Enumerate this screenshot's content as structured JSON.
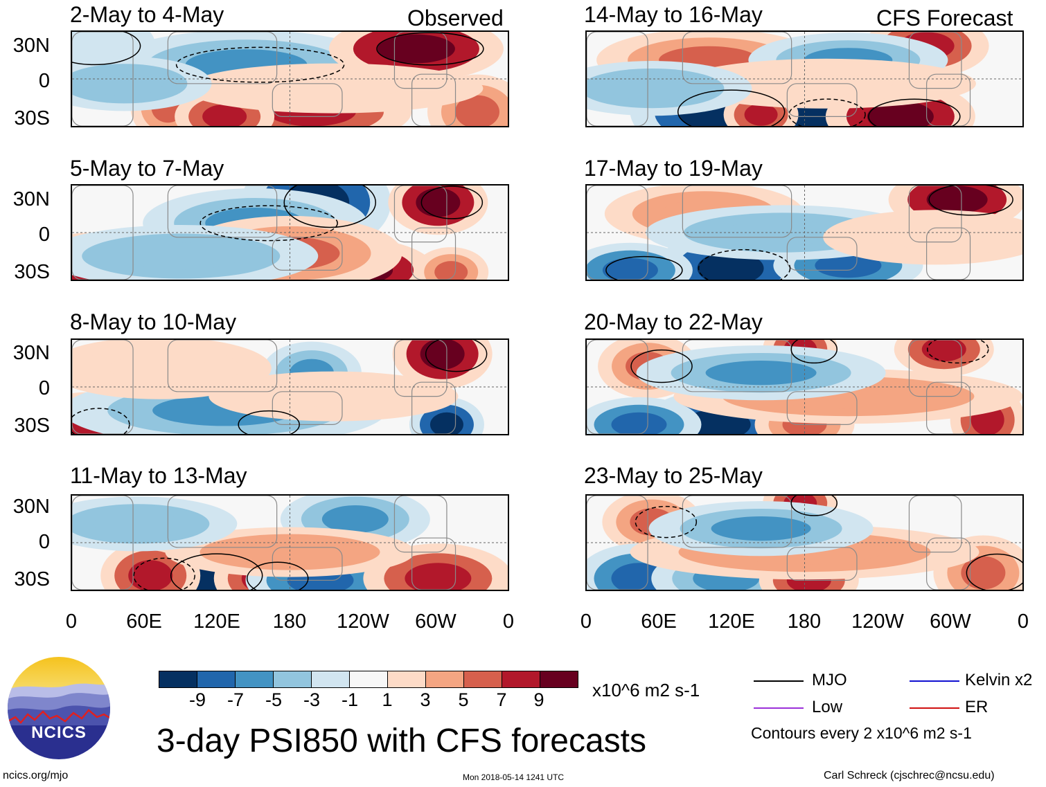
{
  "left_header": "Observed",
  "right_header": "CFS Forecast",
  "observed_panels": [
    {
      "title": "2-May to 4-May"
    },
    {
      "title": "5-May to 7-May"
    },
    {
      "title": "8-May to 10-May"
    },
    {
      "title": "11-May to 13-May"
    }
  ],
  "forecast_panels": [
    {
      "title": "14-May to 16-May"
    },
    {
      "title": "17-May to 19-May"
    },
    {
      "title": "20-May to 22-May"
    },
    {
      "title": "23-May to 25-May"
    }
  ],
  "lat_labels": [
    "30N",
    "0",
    "30S"
  ],
  "lon_labels": [
    "0",
    "60E",
    "120E",
    "180",
    "120W",
    "60W",
    "0"
  ],
  "colorbar": {
    "colors": [
      "#053061",
      "#2166ac",
      "#4393c3",
      "#92c5de",
      "#d1e5f0",
      "#f7f7f7",
      "#fddbc7",
      "#f4a582",
      "#d6604d",
      "#b2182b",
      "#67001f"
    ],
    "tick_labels": [
      "-9",
      "-7",
      "-5",
      "-3",
      "-1",
      "1",
      "3",
      "5",
      "7",
      "9"
    ],
    "units": "x10^6 m2 s-1"
  },
  "main_title": "3-day PSI850 with CFS forecasts",
  "legend": {
    "items": [
      {
        "label": "MJO",
        "color": "#000000"
      },
      {
        "label": "Kelvin x2",
        "color": "#1010d0"
      },
      {
        "label": "Low",
        "color": "#9b30d9"
      },
      {
        "label": "ER",
        "color": "#d01010"
      }
    ],
    "contour_note": "Contours every 2 x10^6 m2 s-1"
  },
  "logo": {
    "text": "NCICS"
  },
  "footer": {
    "left": "ncics.org/mjo",
    "center": "Mon 2018-05-14 1241 UTC",
    "right": "Carl Schreck (cjschrec@ncsu.edu)"
  }
}
